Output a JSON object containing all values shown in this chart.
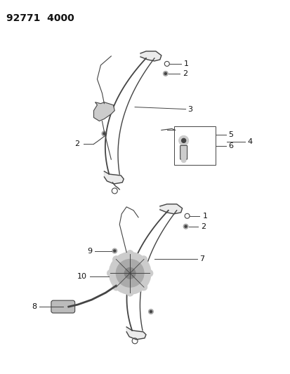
{
  "title": "92771  4000",
  "bg": "#ffffff",
  "lc": "#444444",
  "tc": "#111111",
  "fig_width": 4.14,
  "fig_height": 5.33,
  "dpi": 100
}
